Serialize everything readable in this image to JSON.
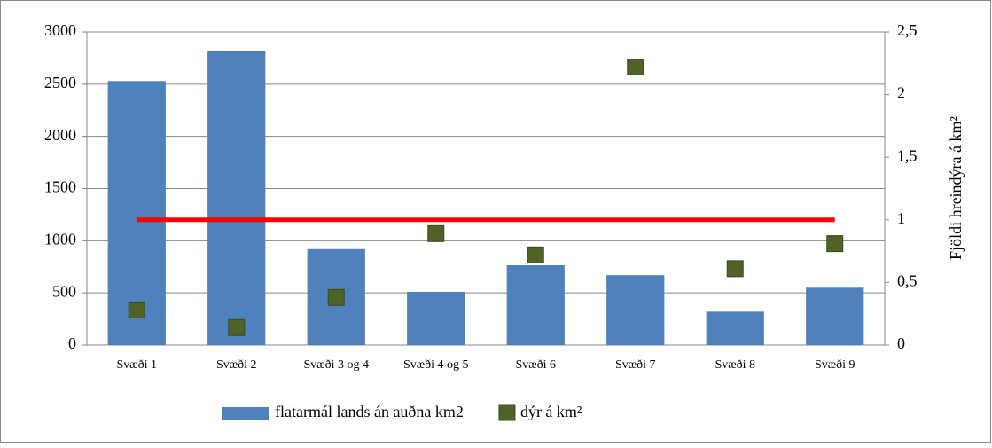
{
  "chart_data": {
    "type": "bar",
    "categories": [
      "Svæði 1",
      "Svæði 2",
      "Svæði 3 og 4",
      "Svæði 4 og 5",
      "Svæði 6",
      "Svæði 7",
      "Svæði 8",
      "Svæði 9"
    ],
    "series": [
      {
        "name": "flatarmál lands án auðna km2",
        "type": "bar",
        "color": "#4f81bd",
        "values": [
          2530,
          2820,
          920,
          510,
          765,
          670,
          320,
          550
        ]
      },
      {
        "name": "dýr á km²",
        "type": "scatter",
        "axis": "y2",
        "color": "#4f6228",
        "values": [
          0.28,
          0.14,
          0.38,
          0.89,
          0.72,
          2.22,
          0.61,
          0.81
        ]
      },
      {
        "type": "line",
        "axis": "y2",
        "color": "#ff0000",
        "values": [
          1,
          1,
          1,
          1,
          1,
          1,
          1,
          1
        ]
      }
    ],
    "ylim": [
      0,
      3000
    ],
    "yticks": [
      0,
      500,
      1000,
      1500,
      2000,
      2500,
      3000
    ],
    "y2lim": [
      0,
      2.5
    ],
    "y2ticks": [
      {
        "value": 0,
        "label": "0"
      },
      {
        "value": 0.5,
        "label": "0,5"
      },
      {
        "value": 1,
        "label": "1"
      },
      {
        "value": 1.5,
        "label": "1,5"
      },
      {
        "value": 2,
        "label": "2"
      },
      {
        "value": 2.5,
        "label": "2,5"
      }
    ],
    "y2label": "Fjöldi hreindýra á km²",
    "grid": true,
    "legend": "bottom"
  }
}
